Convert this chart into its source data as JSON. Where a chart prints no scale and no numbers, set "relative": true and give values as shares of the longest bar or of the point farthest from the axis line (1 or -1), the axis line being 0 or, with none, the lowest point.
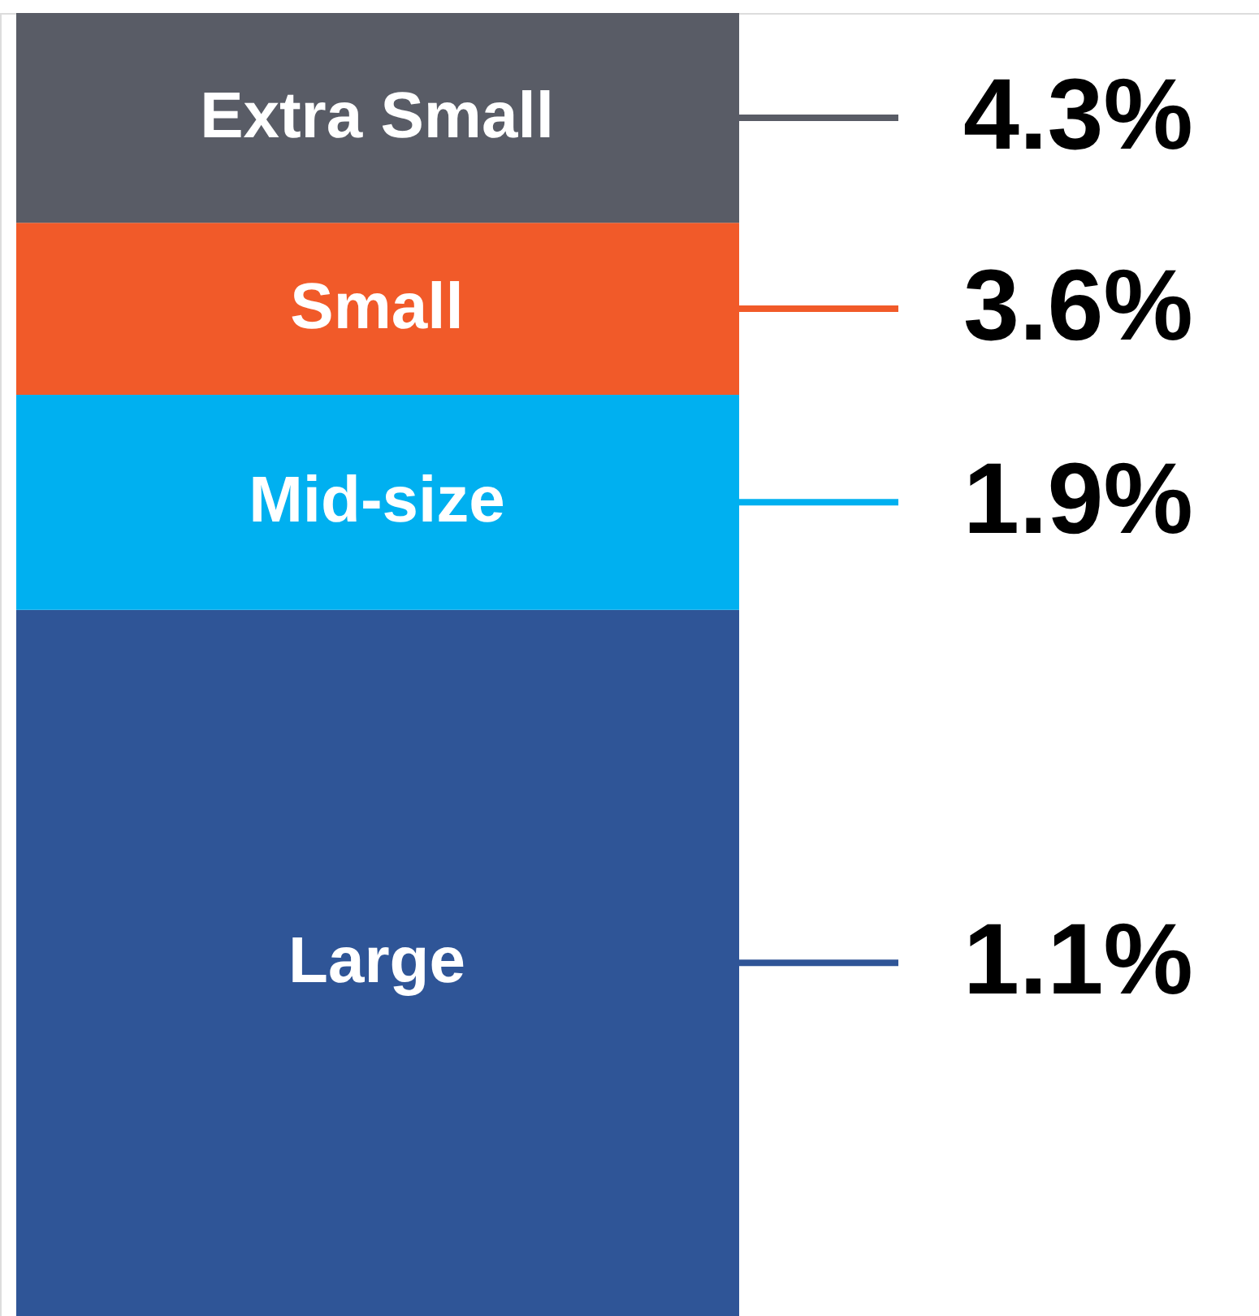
{
  "chart_data": {
    "type": "bar",
    "stacked": true,
    "relative": true,
    "categories": [
      null
    ],
    "series": [
      {
        "name": "Large",
        "color": "#2f5597",
        "values": [
          0.542
        ]
      },
      {
        "name": "Mid-size",
        "color": "#00b0f0",
        "values": [
          0.165
        ]
      },
      {
        "name": "Small",
        "color": "#f15a29",
        "values": [
          0.132
        ]
      },
      {
        "name": "Extra Small",
        "color": "#595c66",
        "values": [
          0.161
        ]
      }
    ],
    "annotations": [
      "1.1%",
      "1.9%",
      "3.6%",
      "4.3%"
    ]
  }
}
